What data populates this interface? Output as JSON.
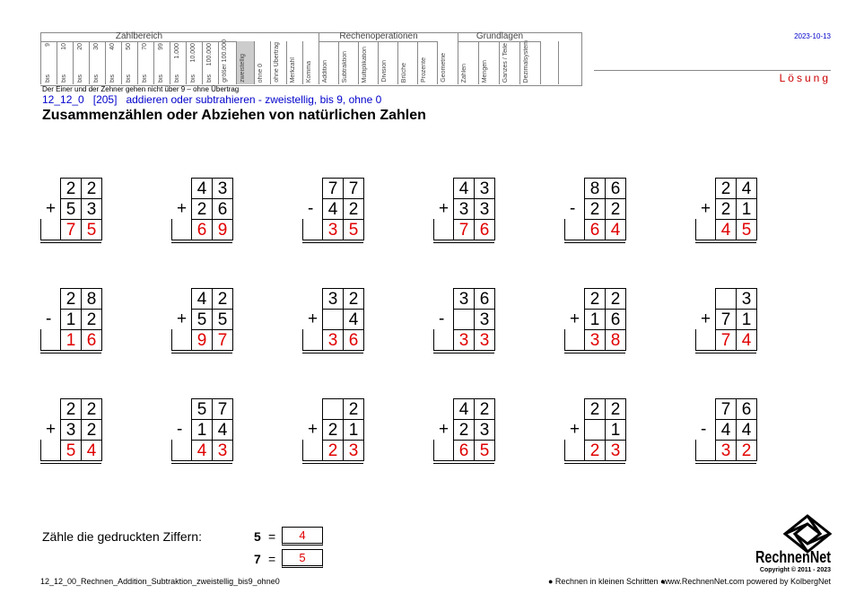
{
  "header": {
    "zahlbereich": {
      "label": "Zahlbereich",
      "prefix": "bis",
      "values": [
        "9",
        "10",
        "20",
        "30",
        "40",
        "50",
        "70",
        "99",
        "1.000",
        "10.000",
        "100.000"
      ],
      "last": "größer 100.000"
    },
    "extra_columns": [
      "zweistellig",
      "ohne 0",
      "ohne Übertrag",
      "Merkzahl",
      "Komma"
    ],
    "rechenoperationen": {
      "label": "Rechenoperationen",
      "columns": [
        "Addition",
        "Subtraktion",
        "Multiplikation",
        "Division",
        "Brüche",
        "Prozente"
      ]
    },
    "geometrie": "Geometrie",
    "grundlagen": {
      "label": "Grundlagen",
      "columns": [
        "Zahlen",
        "Mengen",
        "Ganzes / Teile",
        "Dezimalsystem"
      ]
    },
    "date": "2023-10-13",
    "solution": "Lösung",
    "note": "Der Einer und der Zehner gehen nicht über 9 – ohne Übertrag",
    "code": "12_12_0",
    "number": "[205]",
    "subtitle": "addieren oder subtrahieren - zweistellig, bis 9, ohne 0",
    "title": "Zusammenzählen oder Abziehen von natürlichen Zahlen"
  },
  "problems": [
    {
      "top": [
        2,
        2
      ],
      "op": "+",
      "bottom": [
        5,
        3
      ],
      "result": [
        7,
        5
      ]
    },
    {
      "top": [
        4,
        3
      ],
      "op": "+",
      "bottom": [
        2,
        6
      ],
      "result": [
        6,
        9
      ]
    },
    {
      "top": [
        7,
        7
      ],
      "op": "-",
      "bottom": [
        4,
        2
      ],
      "result": [
        3,
        5
      ]
    },
    {
      "top": [
        4,
        3
      ],
      "op": "+",
      "bottom": [
        3,
        3
      ],
      "result": [
        7,
        6
      ]
    },
    {
      "top": [
        8,
        6
      ],
      "op": "-",
      "bottom": [
        2,
        2
      ],
      "result": [
        6,
        4
      ]
    },
    {
      "top": [
        2,
        4
      ],
      "op": "+",
      "bottom": [
        2,
        1
      ],
      "result": [
        4,
        5
      ]
    },
    {
      "top": [
        2,
        8
      ],
      "op": "-",
      "bottom": [
        1,
        2
      ],
      "result": [
        1,
        6
      ]
    },
    {
      "top": [
        4,
        2
      ],
      "op": "+",
      "bottom": [
        5,
        5
      ],
      "result": [
        9,
        7
      ]
    },
    {
      "top": [
        3,
        2
      ],
      "op": "+",
      "bottom": [
        null,
        4
      ],
      "result": [
        3,
        6
      ]
    },
    {
      "top": [
        3,
        6
      ],
      "op": "-",
      "bottom": [
        null,
        3
      ],
      "result": [
        3,
        3
      ]
    },
    {
      "top": [
        2,
        2
      ],
      "op": "+",
      "bottom": [
        1,
        6
      ],
      "result": [
        3,
        8
      ]
    },
    {
      "top": [
        null,
        3
      ],
      "op": "+",
      "bottom": [
        7,
        1
      ],
      "result": [
        7,
        4
      ]
    },
    {
      "top": [
        2,
        2
      ],
      "op": "+",
      "bottom": [
        3,
        2
      ],
      "result": [
        5,
        4
      ]
    },
    {
      "top": [
        5,
        7
      ],
      "op": "-",
      "bottom": [
        1,
        4
      ],
      "result": [
        4,
        3
      ]
    },
    {
      "top": [
        null,
        2
      ],
      "op": "+",
      "bottom": [
        2,
        1
      ],
      "result": [
        2,
        3
      ]
    },
    {
      "top": [
        4,
        2
      ],
      "op": "+",
      "bottom": [
        2,
        3
      ],
      "result": [
        6,
        5
      ]
    },
    {
      "top": [
        2,
        2
      ],
      "op": "+",
      "bottom": [
        null,
        1
      ],
      "result": [
        2,
        3
      ]
    },
    {
      "top": [
        7,
        6
      ],
      "op": "-",
      "bottom": [
        4,
        4
      ],
      "result": [
        3,
        2
      ]
    }
  ],
  "count": {
    "label": "Zähle die gedruckten Ziffern:",
    "equals": "=",
    "items": [
      {
        "digit": 5,
        "answer": 4
      },
      {
        "digit": 7,
        "answer": 5
      }
    ]
  },
  "footer": {
    "file": "12_12_00_Rechnen_Addition_Subtraktion_zweistellig_bis9_ohne0",
    "motto": "● Rechnen in kleinen Schritten ●",
    "site": "www.RechnenNet.com powered by KolbergNet",
    "logo": "RechnenNet",
    "copyright": "Copyright © 2011 - 2023"
  }
}
